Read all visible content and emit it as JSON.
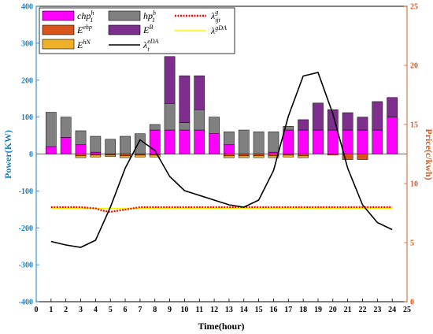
{
  "chart_data": {
    "type": "bar",
    "xlabel": "Time(hour)",
    "ylabel_left": "Power(KW)",
    "ylabel_right": "Price(c/kwh)",
    "xlim": [
      0,
      25
    ],
    "x_ticks": [
      "0",
      "1",
      "2",
      "3",
      "4",
      "5",
      "6",
      "7",
      "8",
      "9",
      "10",
      "11",
      "12",
      "13",
      "14",
      "15",
      "16",
      "17",
      "18",
      "19",
      "20",
      "21",
      "22",
      "23",
      "24",
      "25"
    ],
    "ylim_left": [
      -400,
      400
    ],
    "y_ticks_left": [
      "400",
      "300",
      "200",
      "100",
      "0",
      "-100",
      "-200",
      "-300",
      "-400"
    ],
    "ylim_right": [
      0,
      25
    ],
    "y_ticks_right": [
      "25",
      "20",
      "15",
      "10",
      "5",
      "0"
    ],
    "legend_position": "top-center",
    "colors": {
      "left_axis": "#1a7fbf",
      "right_axis": "#d85a1f",
      "chp": "#ff00ff",
      "hp": "#808080",
      "Eehp": "#d9541a",
      "EB": "#7e2f8e",
      "EhN": "#f0b02a",
      "lambda_g": "#ff0000",
      "lambda_gDA": "#f5f500",
      "lambda_eDA": "#000000"
    },
    "legend": {
      "chp": "chp",
      "chp_sup": "h",
      "chp_sub": "1",
      "hp": "hp",
      "hp_sup": "h",
      "hp_sub": "1",
      "Eehp": "E",
      "Eehp_sup": "ehp",
      "EB": "E",
      "EB_sup": "B",
      "EhN": "E",
      "EhN_sup": "hN",
      "lambda_eDA": "λ",
      "lambda_eDA_sup": "eDA",
      "lambda_eDA_sub": "t",
      "lambda_g": "λ",
      "lambda_g_sup": "g",
      "lambda_g_sub": "ijt",
      "lambda_gDA": "λ",
      "lambda_gDA_sup": "gDA"
    },
    "hours": [
      1,
      2,
      3,
      4,
      5,
      6,
      7,
      8,
      9,
      10,
      11,
      12,
      13,
      14,
      15,
      16,
      17,
      18,
      19,
      20,
      21,
      22,
      23,
      24
    ],
    "series": [
      {
        "key": "chp",
        "values": [
          20,
          45,
          25,
          5,
          0,
          0,
          0,
          65,
          65,
          65,
          65,
          55,
          25,
          0,
          0,
          5,
          65,
          65,
          65,
          65,
          65,
          65,
          65,
          100
        ]
      },
      {
        "key": "hp",
        "values": [
          93,
          55,
          38,
          43,
          40,
          48,
          55,
          15,
          72,
          20,
          55,
          45,
          35,
          65,
          60,
          55,
          10,
          0,
          0,
          0,
          0,
          0,
          0,
          0
        ]
      },
      {
        "key": "EB",
        "values": [
          0,
          0,
          0,
          0,
          0,
          0,
          0,
          0,
          127,
          127,
          92,
          0,
          0,
          0,
          0,
          0,
          0,
          28,
          73,
          55,
          47,
          35,
          77,
          53
        ]
      },
      {
        "key": "Eehp",
        "values": [
          0,
          0,
          -5,
          -3,
          -3,
          -5,
          -3,
          -3,
          0,
          0,
          0,
          0,
          -5,
          -5,
          -5,
          -5,
          -3,
          -5,
          0,
          -3,
          -15,
          -15,
          0,
          0
        ]
      },
      {
        "key": "EhN",
        "values": [
          0,
          0,
          -5,
          -5,
          -4,
          -5,
          -5,
          -5,
          0,
          0,
          0,
          0,
          -5,
          -5,
          -5,
          -5,
          -5,
          -5,
          0,
          0,
          0,
          0,
          0,
          0
        ]
      }
    ],
    "lambda_eDA": {
      "x": [
        1,
        2,
        3,
        4,
        5,
        6,
        7,
        8,
        9,
        10,
        11,
        12,
        13,
        14,
        15,
        16,
        17,
        18,
        19,
        20,
        21,
        22,
        23,
        24
      ],
      "y": [
        5.1,
        4.8,
        4.6,
        5.2,
        8.0,
        11.3,
        13.7,
        12.8,
        10.6,
        9.4,
        9.0,
        8.6,
        8.2,
        8.0,
        8.6,
        11.1,
        15.7,
        19.1,
        19.4,
        15.9,
        11.3,
        8.2,
        6.7,
        6.1
      ]
    },
    "lambda_g": {
      "x": [
        1,
        2,
        3,
        4,
        4.5,
        5,
        6,
        7,
        8,
        9,
        10,
        11,
        12,
        13,
        14,
        15,
        16,
        17,
        18,
        19,
        20,
        21,
        22,
        23,
        24
      ],
      "y": [
        8.0,
        8.0,
        8.0,
        7.9,
        7.7,
        7.6,
        7.8,
        8.0,
        8.0,
        8.0,
        8.0,
        8.0,
        8.0,
        8.0,
        8.0,
        8.0,
        8.0,
        8.0,
        8.0,
        8.0,
        8.0,
        8.0,
        8.0,
        8.0,
        8.0
      ]
    },
    "lambda_gDA": {
      "x": [
        1,
        24
      ],
      "y": [
        7.9,
        7.9
      ]
    }
  }
}
